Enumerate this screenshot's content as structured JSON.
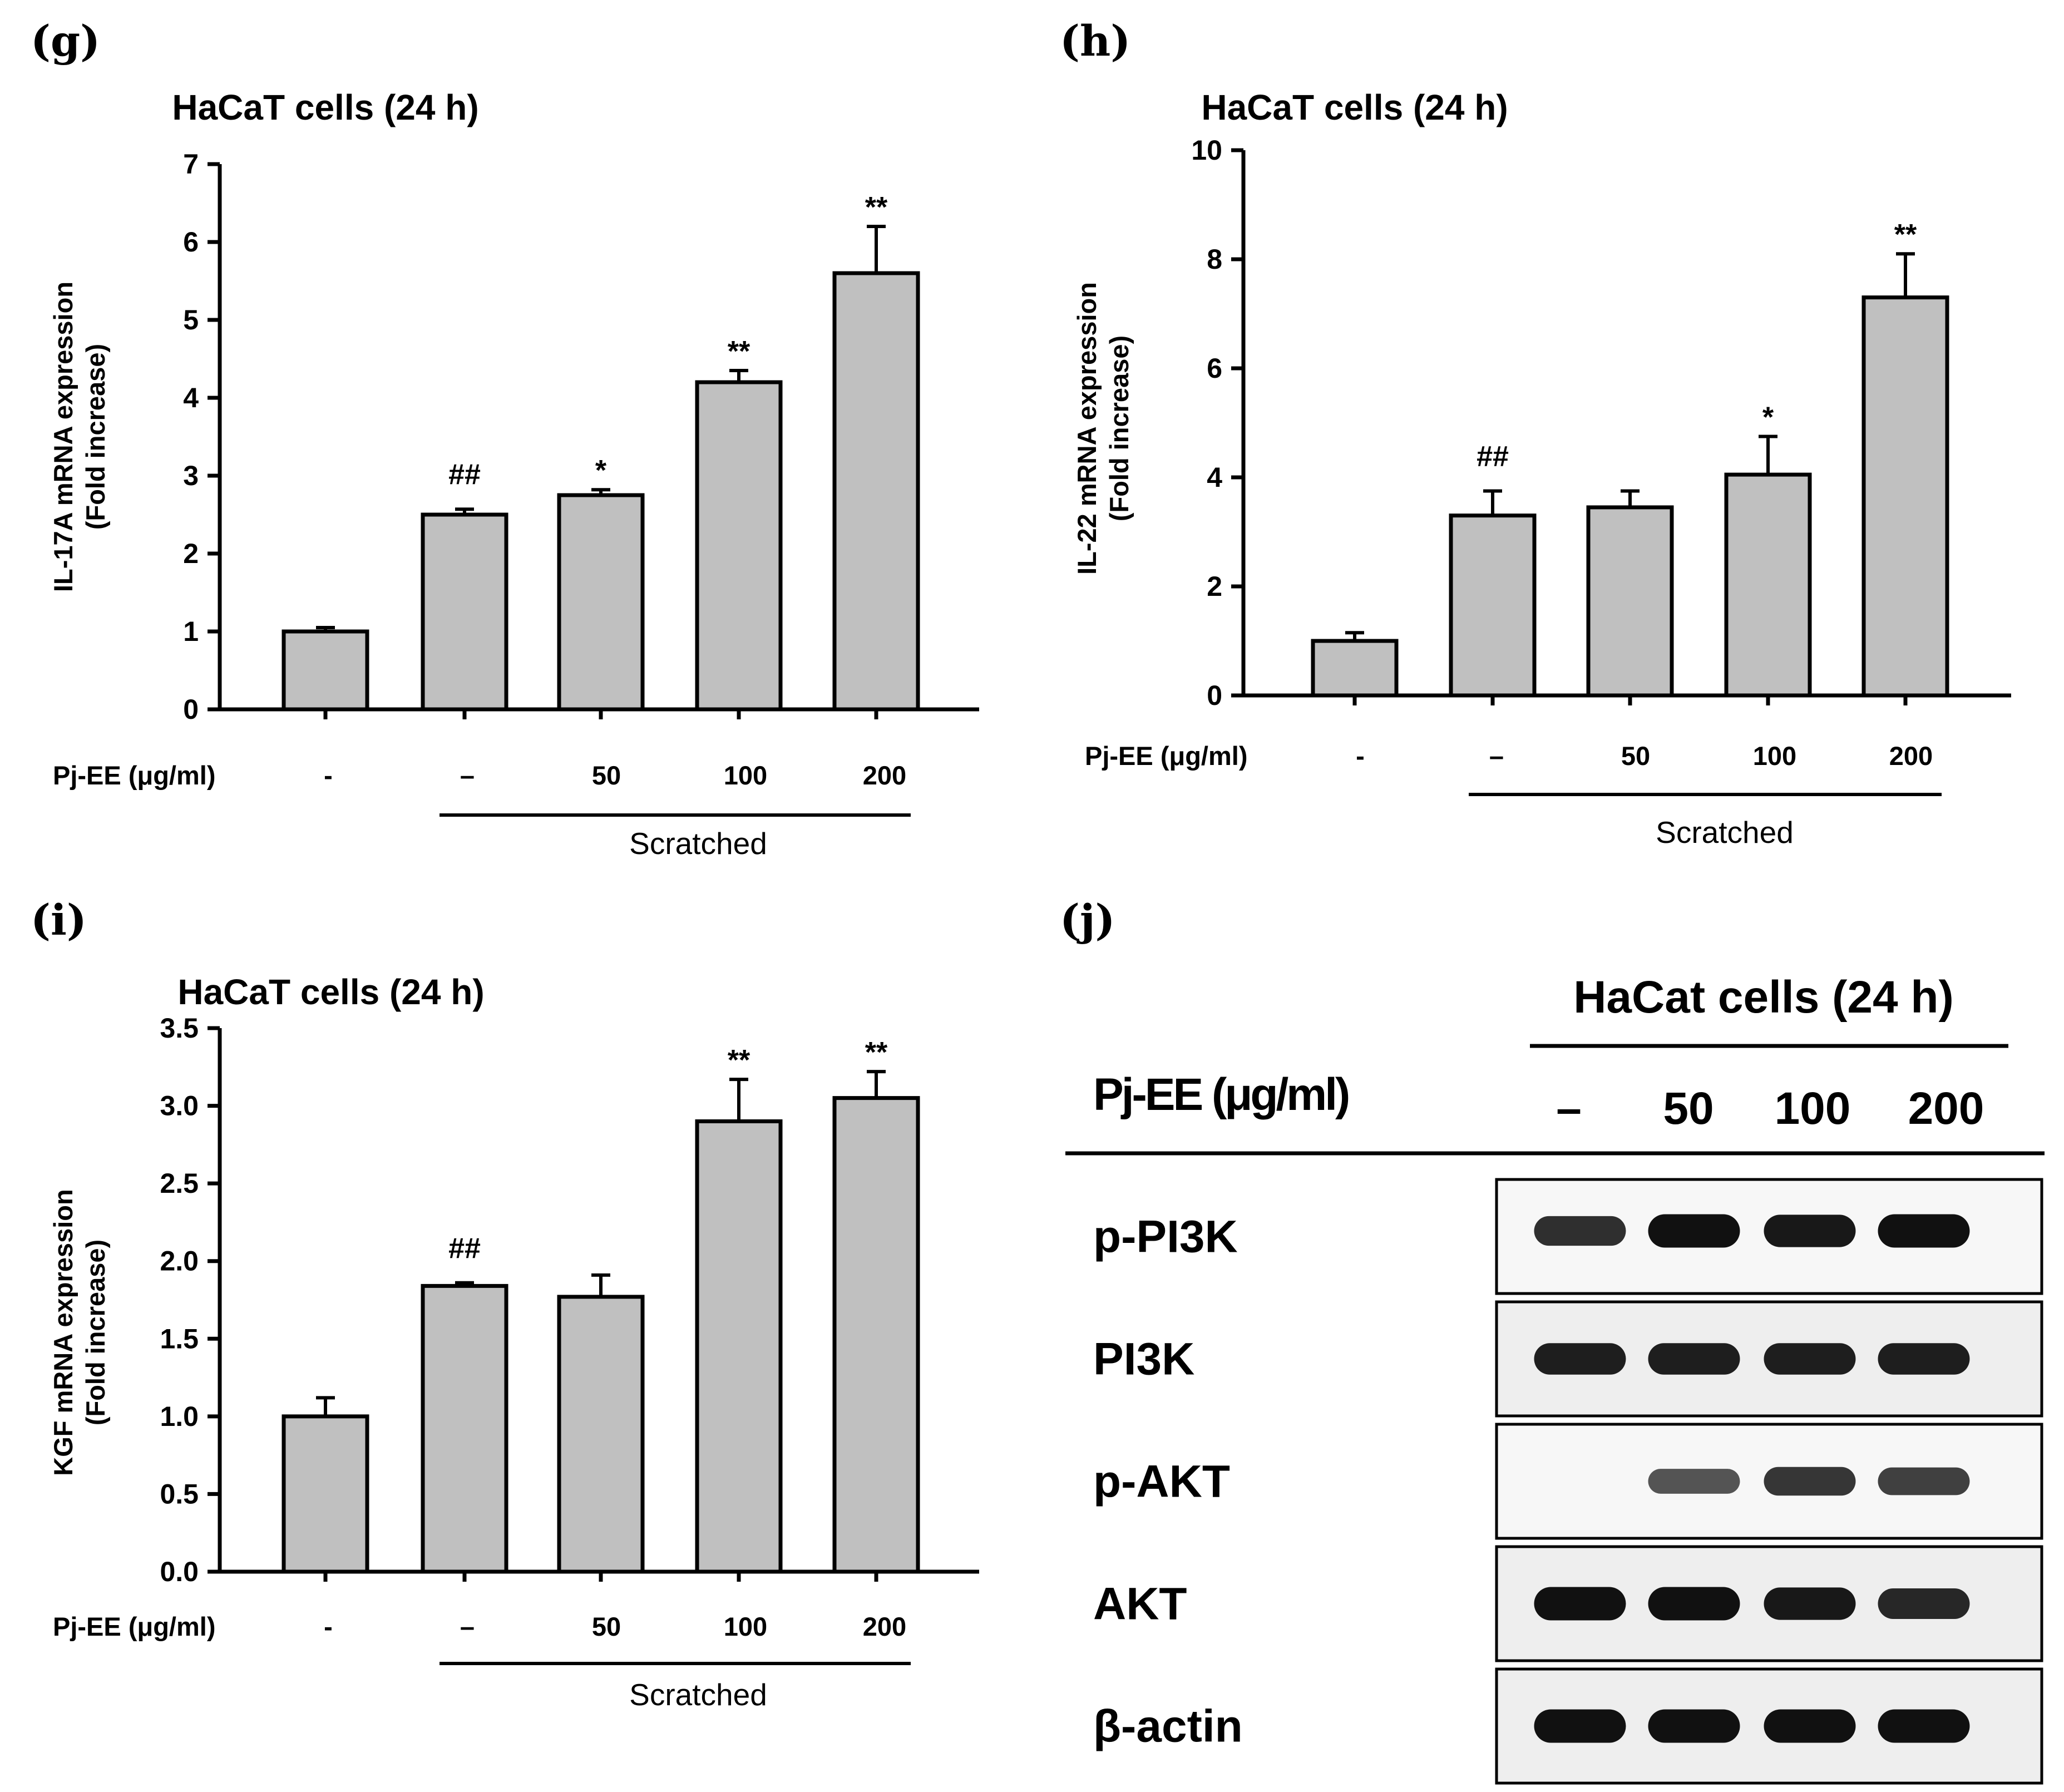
{
  "chart_data": [
    {
      "type": "bar",
      "panel": "(g)",
      "title": "HaCaT cells (24 h)",
      "ylabel": [
        "IL-17A mRNA expression",
        "(Fold increase)"
      ],
      "xlabel": "Pj-EE (μg/ml)",
      "group_label": "Scratched",
      "categories": [
        "-",
        "–",
        "50",
        "100",
        "200"
      ],
      "values": [
        1.0,
        2.5,
        2.75,
        4.2,
        5.6
      ],
      "errors": [
        0.05,
        0.07,
        0.07,
        0.15,
        0.6
      ],
      "significance": [
        "",
        "##",
        "*",
        "**",
        "**"
      ],
      "ylim": [
        0,
        7
      ],
      "yticks": [
        "0",
        "1",
        "2",
        "3",
        "4",
        "5",
        "6",
        "7"
      ]
    },
    {
      "type": "bar",
      "panel": "(h)",
      "title": "HaCaT cells (24 h)",
      "ylabel": [
        "IL-22 mRNA expression",
        "(Fold increase)"
      ],
      "xlabel": "Pj-EE (μg/ml)",
      "group_label": "Scratched",
      "categories": [
        "-",
        "–",
        "50",
        "100",
        "200"
      ],
      "values": [
        1.0,
        3.3,
        3.45,
        4.05,
        7.3
      ],
      "errors": [
        0.15,
        0.45,
        0.3,
        0.7,
        0.8
      ],
      "significance": [
        "",
        "##",
        "",
        "*",
        "**"
      ],
      "ylim": [
        0,
        10
      ],
      "yticks": [
        "0",
        "2",
        "4",
        "6",
        "8",
        "10"
      ]
    },
    {
      "type": "bar",
      "panel": "(i)",
      "title": "HaCaT cells (24 h)",
      "ylabel": [
        "KGF mRNA expression",
        "(Fold increase)"
      ],
      "xlabel": "Pj-EE (μg/ml)",
      "group_label": "Scratched",
      "categories": [
        "-",
        "–",
        "50",
        "100",
        "200"
      ],
      "values": [
        1.0,
        1.84,
        1.77,
        2.9,
        3.05
      ],
      "errors": [
        0.12,
        0.02,
        0.14,
        0.27,
        0.17
      ],
      "significance": [
        "",
        "##",
        "",
        "**",
        "**"
      ],
      "ylim": [
        0,
        3.5
      ],
      "yticks": [
        "0.0",
        "0.5",
        "1.0",
        "1.5",
        "2.0",
        "2.5",
        "3.0",
        "3.5"
      ]
    }
  ],
  "western_blot": {
    "panel": "(j)",
    "title": "HaCat cells (24 h)",
    "dose_label": "Pj-EE (μg/ml)",
    "doses": [
      "–",
      "50",
      "100",
      "200"
    ],
    "proteins": [
      {
        "name": "p-PI3K",
        "intensity": [
          0.8,
          1.0,
          0.95,
          1.0
        ]
      },
      {
        "name": "PI3K",
        "intensity": [
          0.9,
          0.9,
          0.9,
          0.9
        ]
      },
      {
        "name": "p-AKT",
        "intensity": [
          0.0,
          0.55,
          0.75,
          0.7
        ]
      },
      {
        "name": "AKT",
        "intensity": [
          1.0,
          1.0,
          0.95,
          0.85
        ]
      },
      {
        "name": "β-actin",
        "intensity": [
          1.0,
          1.0,
          1.0,
          1.0
        ]
      }
    ]
  }
}
